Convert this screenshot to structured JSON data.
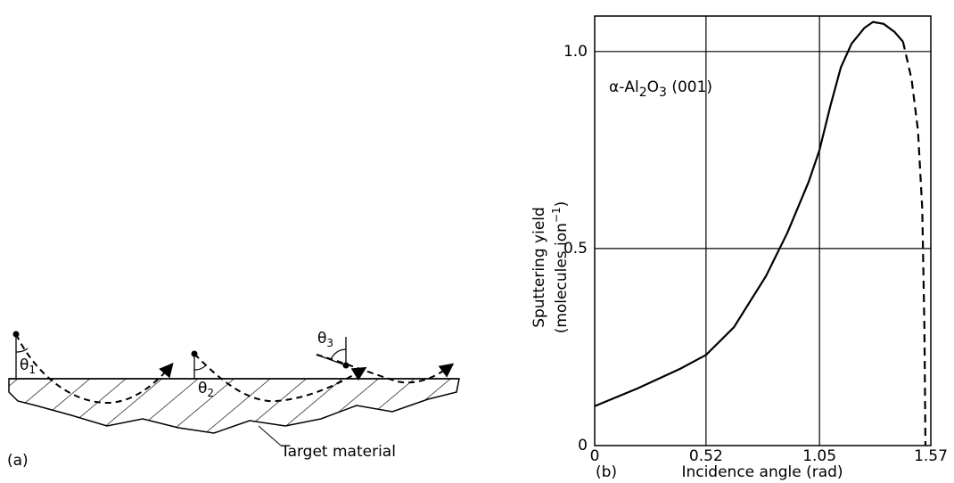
{
  "diagram": {
    "panel_label": "(a)",
    "target_label": "Target material",
    "angles": [
      {
        "symbol": "θ",
        "sub": "1"
      },
      {
        "symbol": "θ",
        "sub": "2"
      },
      {
        "symbol": "θ",
        "sub": "3"
      }
    ]
  },
  "chart_data": {
    "type": "line",
    "panel_label": "(b)",
    "annotation": [
      "α-Al",
      "2",
      "O",
      "3",
      " (001)"
    ],
    "x_label": "Incidence angle (rad)",
    "y_label": [
      "Sputtering yield",
      "(molecules ion",
      "−1",
      ")"
    ],
    "xlim": [
      0,
      1.57
    ],
    "xticks": [
      0,
      0.52,
      1.05,
      1.57
    ],
    "ylim": [
      0,
      1.09
    ],
    "yticks": [
      0,
      0.5,
      {
        "value": 1,
        "label": "1.0"
      }
    ],
    "grid": true,
    "series": [
      {
        "color": "#000000",
        "line_style": "solid",
        "x": [
          0,
          0.2,
          0.4,
          0.52,
          0.65,
          0.8,
          0.9,
          1.0,
          1.05,
          1.1,
          1.15,
          1.2,
          1.26,
          1.3,
          1.35,
          1.4,
          1.44
        ],
        "values": [
          0.1,
          0.145,
          0.195,
          0.23,
          0.3,
          0.43,
          0.54,
          0.67,
          0.75,
          0.86,
          0.96,
          1.02,
          1.06,
          1.075,
          1.07,
          1.05,
          1.025
        ]
      },
      {
        "color": "#000000",
        "line_style": "dashed",
        "x": [
          1.44,
          1.48,
          1.51,
          1.53,
          1.54,
          1.545
        ],
        "values": [
          1.025,
          0.93,
          0.8,
          0.6,
          0.3,
          0
        ]
      }
    ]
  }
}
